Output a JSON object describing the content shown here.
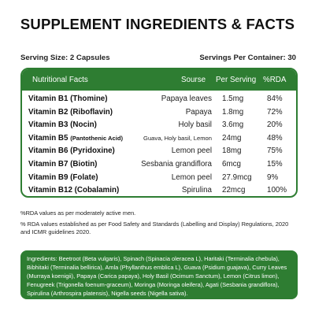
{
  "title": "SUPPLEMENT INGREDIENTS & FACTS",
  "serving": {
    "size": "Serving Size: 2 Capsules",
    "per_container": "Servings Per Container: 30"
  },
  "table": {
    "headers": {
      "facts": "Nutritional Facts",
      "source": "Sourse",
      "per_serving": "Per Serving",
      "rda": "%RDA"
    },
    "rows": [
      {
        "name": "Vitamin B1 (Thomine)",
        "name_suffix": "",
        "source": "Papaya leaves",
        "per_serving": "1.5mg",
        "rda": "84%"
      },
      {
        "name": "Vitamin B2 (Riboflavin)",
        "name_suffix": "",
        "source": "Papaya",
        "per_serving": "1.8mg",
        "rda": "72%"
      },
      {
        "name": "Vitamin B3 (Nocin)",
        "name_suffix": "",
        "source": "Holy basil",
        "per_serving": "3.6mg",
        "rda": "20%"
      },
      {
        "name": "Vitamin B5 ",
        "name_suffix": "(Pantothenic Acid)",
        "source": "Guava, Holy basil, Lemon",
        "per_serving": "24mg",
        "rda": "48%"
      },
      {
        "name": "Vitamin B6 (Pyridoxine)",
        "name_suffix": "",
        "source": "Lemon peel",
        "per_serving": "18mg",
        "rda": "75%"
      },
      {
        "name": "Vitamin B7 (Biotin)",
        "name_suffix": "",
        "source": "Sesbania grandiflora",
        "per_serving": "6mcg",
        "rda": "15%"
      },
      {
        "name": "Vitamin B9 (Folate)",
        "name_suffix": "",
        "source": "Lemon peel",
        "per_serving": "27.9mcg",
        "rda": "9%"
      },
      {
        "name": "Vitamin B12 (Cobalamin)",
        "name_suffix": "",
        "source": "Spirulina",
        "per_serving": "22mcg",
        "rda": "100%"
      }
    ]
  },
  "notes": [
    "%RDA values as per moderately active men.",
    "% RDA values established as per Food Safety and Standards (Labelling and Display) Regulations, 2020 and ICMR guidelines 2020."
  ],
  "ingredients": "Ingredients: Beetroot (Beta vulgaris), Spinach (Spinacia oleracea L), Haritaki (Terminalia chebula), Bibhitaki (Terminalia bellirica), Amla (Phyllanthus emblica L), Guava (Psidium guajava), Curry Leaves (Murraya koenigii), Papaya (Carica papaya), Holy Basil (Ocimum Sanctum), Lemon (Citrus limon), Fenugreek (Trigonella foenum-graceum), Moringa (Moringa oleifera), Agati (Sesbania grandiflora), Spirulina (Arthrospira platensis), Nigella seeds (Nigella sativa).",
  "colors": {
    "brand_green": "#2e7d32",
    "text_dark": "#111111",
    "background": "#ffffff"
  }
}
